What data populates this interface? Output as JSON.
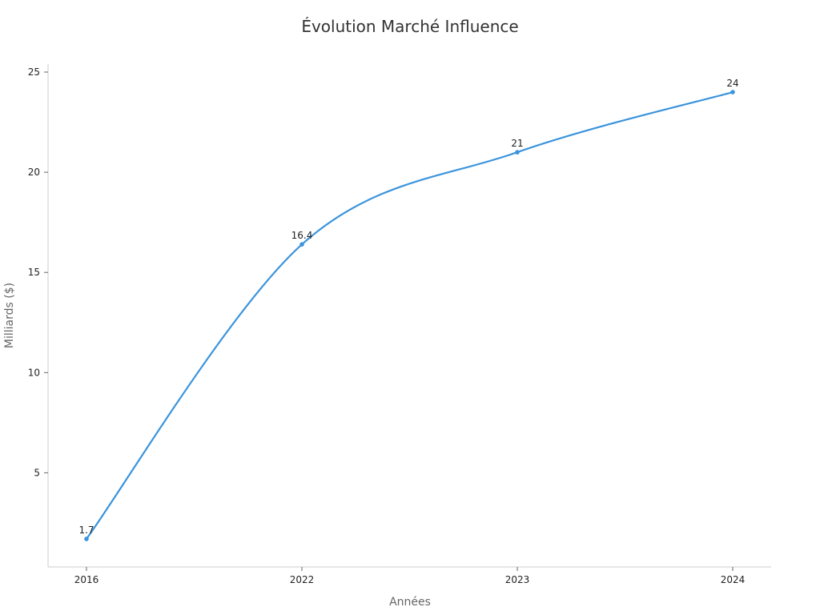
{
  "chart_data": {
    "type": "line",
    "title": "Évolution Marché Influence",
    "xlabel": "Années",
    "ylabel": "Milliards ($)",
    "categories": [
      "2016",
      "2022",
      "2023",
      "2024"
    ],
    "series": [
      {
        "values": [
          1.7,
          16.4,
          21,
          24
        ],
        "labels": [
          "1.7",
          "16.4",
          "21",
          "24"
        ],
        "color": "#3b94dc"
      }
    ],
    "y_ticks": [
      5,
      10,
      15,
      20,
      25
    ],
    "y_tick_labels": [
      "5",
      "10",
      "15",
      "20",
      "25"
    ],
    "ylim": [
      0.3,
      25.4
    ],
    "grid": false,
    "axis_color": "#cccccc"
  }
}
